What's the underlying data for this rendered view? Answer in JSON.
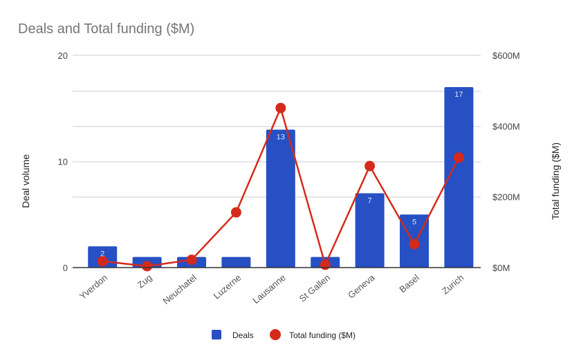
{
  "chart_data": {
    "type": "bar+line",
    "title": "Deals and Total funding ($M)",
    "categories": [
      "Yverdon",
      "Zug",
      "Neuchatel",
      "Luzerne",
      "Lausanne",
      "St Gallen",
      "Geneva",
      "Basel",
      "Zurich"
    ],
    "series": [
      {
        "name": "Deals",
        "type": "bar",
        "axis": "left",
        "color": "#2650c4",
        "values": [
          2,
          1,
          1,
          1,
          13,
          1,
          7,
          5,
          17
        ],
        "data_labels": [
          "2",
          "",
          "",
          "",
          "13",
          "",
          "7",
          "5",
          "17"
        ]
      },
      {
        "name": "Total funding ($M)",
        "type": "line",
        "axis": "right",
        "color": "#d52a1a",
        "values": [
          18,
          4,
          22,
          156,
          451,
          8,
          287,
          66,
          311
        ]
      }
    ],
    "ylabel": "Deal volume",
    "ylabel_right": "Total funding ($M)",
    "ylim": [
      0,
      20
    ],
    "ylim_right": [
      0,
      600
    ],
    "yticks": [
      "0",
      "10",
      "20"
    ],
    "yticks_right": [
      "$0M",
      "$200M",
      "$400M",
      "$600M"
    ],
    "grid": true,
    "legend": "bottom"
  }
}
